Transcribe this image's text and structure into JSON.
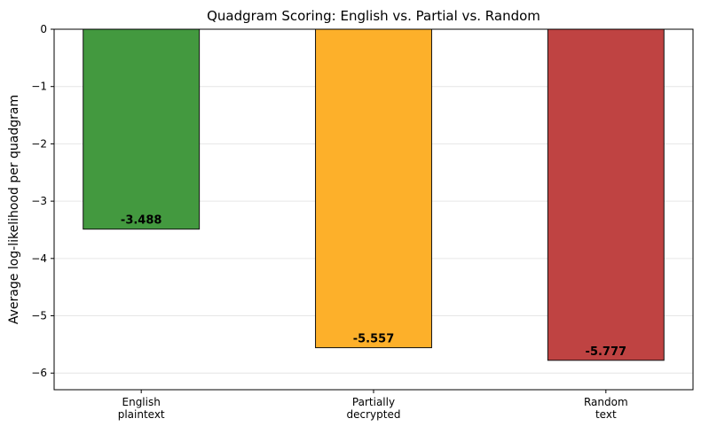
{
  "chart_data": {
    "type": "bar",
    "title": "Quadgram Scoring: English vs. Partial vs. Random",
    "xlabel": "",
    "ylabel": "Average log-likelihood per quadgram",
    "categories": [
      [
        "English",
        "plaintext"
      ],
      [
        "Partially",
        "decrypted"
      ],
      [
        "Random",
        "text"
      ]
    ],
    "values": [
      -3.488,
      -5.557,
      -5.777
    ],
    "value_labels": [
      "-3.488",
      "-5.557",
      "-5.777"
    ],
    "colors": [
      "#43993f",
      "#fdb02a",
      "#bf4342"
    ],
    "ylim": [
      -6.29,
      0
    ],
    "yticks": [
      0,
      -1,
      -2,
      -3,
      -4,
      -5,
      -6
    ],
    "ytick_labels": [
      "0",
      "−1",
      "−2",
      "−3",
      "−4",
      "−5",
      "−6"
    ],
    "grid": "horizontal"
  }
}
